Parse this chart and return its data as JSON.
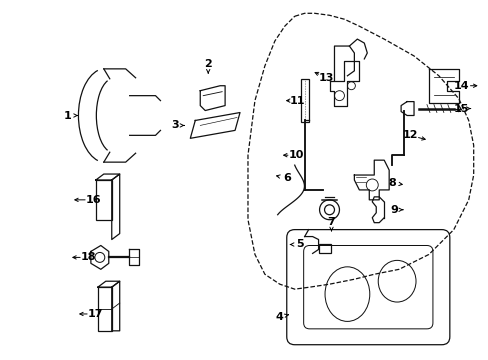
{
  "bg_color": "#ffffff",
  "fig_width": 4.89,
  "fig_height": 3.6,
  "dpi": 100,
  "lc": "#111111",
  "door_outline": {
    "x": [
      0.295,
      0.305,
      0.32,
      0.34,
      0.5,
      0.515,
      0.525,
      0.525,
      0.515,
      0.49,
      0.45,
      0.38,
      0.295,
      0.27,
      0.255,
      0.245,
      0.245,
      0.255,
      0.27,
      0.285,
      0.295
    ],
    "y": [
      0.9,
      0.915,
      0.92,
      0.92,
      0.86,
      0.84,
      0.78,
      0.65,
      0.52,
      0.35,
      0.22,
      0.12,
      0.085,
      0.09,
      0.12,
      0.25,
      0.55,
      0.72,
      0.83,
      0.88,
      0.9
    ]
  }
}
